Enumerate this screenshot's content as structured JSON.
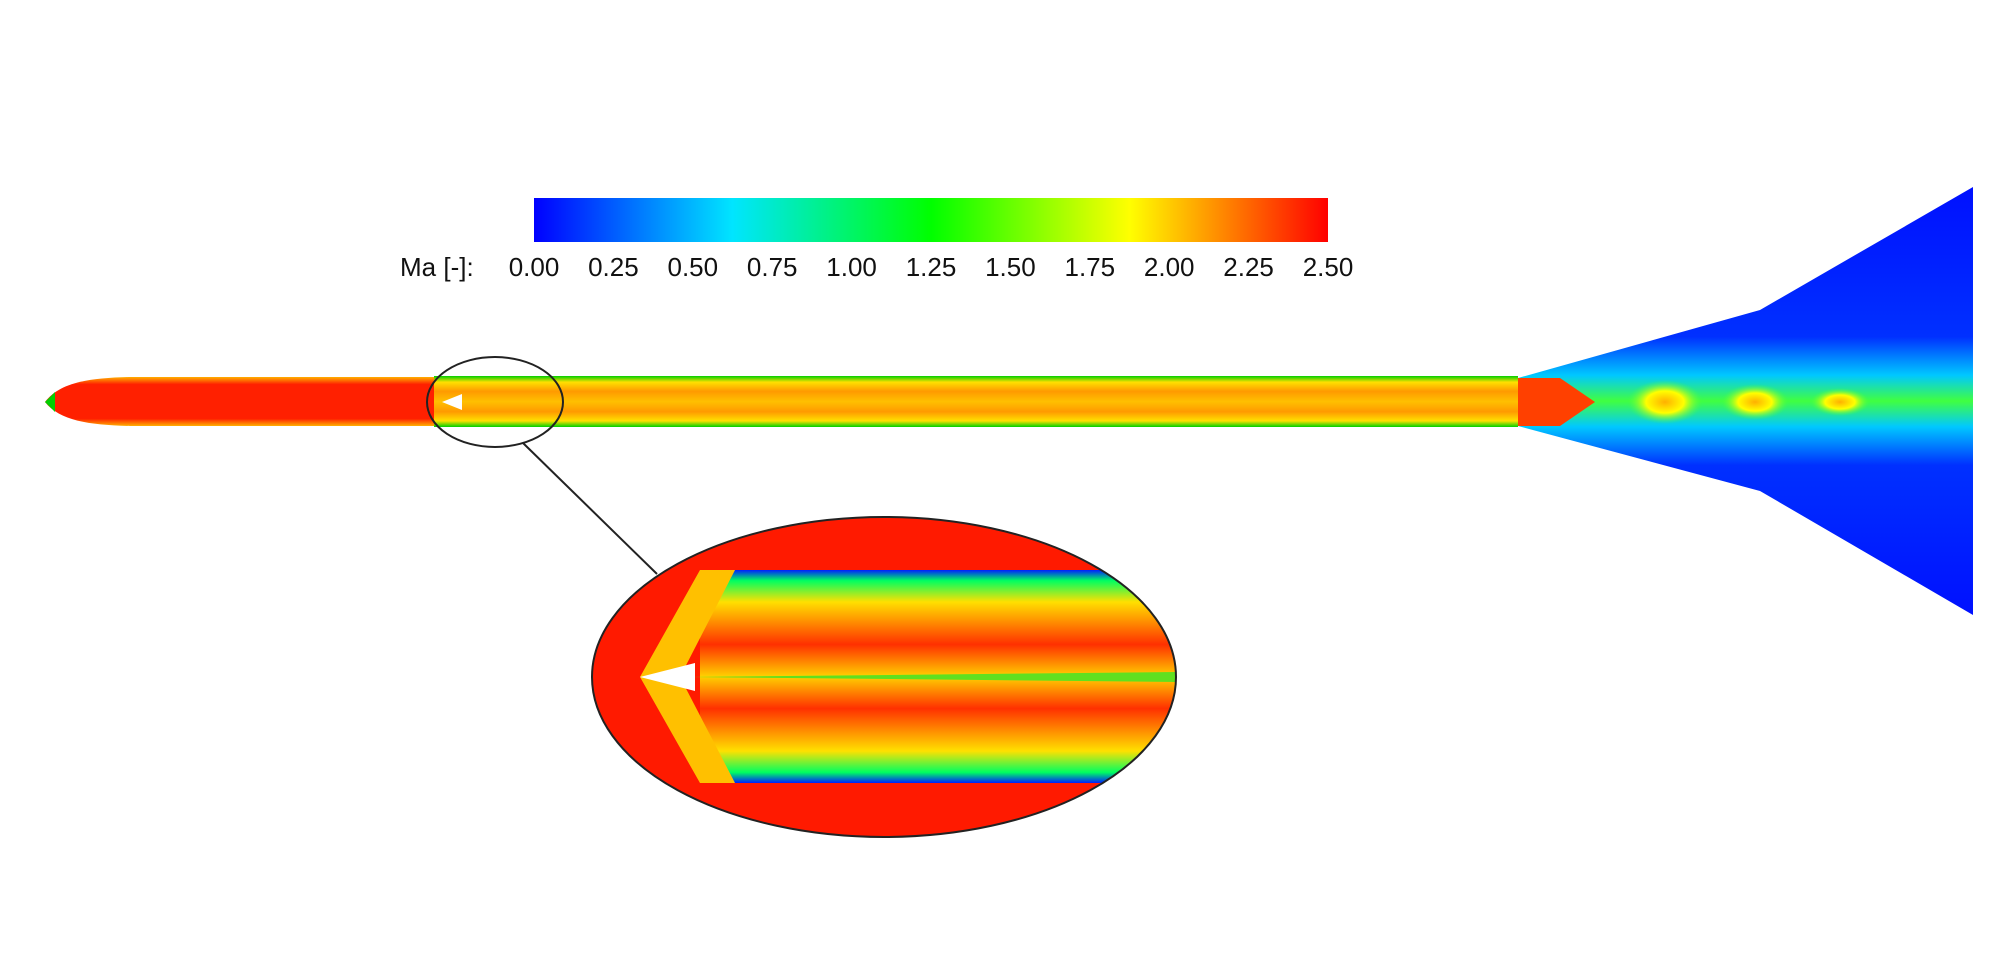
{
  "colorbar": {
    "label": "Ma [-]:",
    "range": [
      0,
      2.5
    ],
    "colors": [
      "#0000ff",
      "#00e5ff",
      "#00ff00",
      "#ffff00",
      "#ff0000"
    ],
    "ticks": [
      {
        "value": 0,
        "label": "0.00"
      },
      {
        "value": 0.25,
        "label": "0.25"
      },
      {
        "value": 0.5,
        "label": "0.50"
      },
      {
        "value": 0.75,
        "label": "0.75"
      },
      {
        "value": 1,
        "label": "1.00"
      },
      {
        "value": 1.25,
        "label": "1.25"
      },
      {
        "value": 1.5,
        "label": "1.50"
      },
      {
        "value": 1.75,
        "label": "1.75"
      },
      {
        "value": 2,
        "label": "2.00"
      },
      {
        "value": 2.25,
        "label": "2.25"
      },
      {
        "value": 2.5,
        "label": "2.50"
      }
    ]
  }
}
